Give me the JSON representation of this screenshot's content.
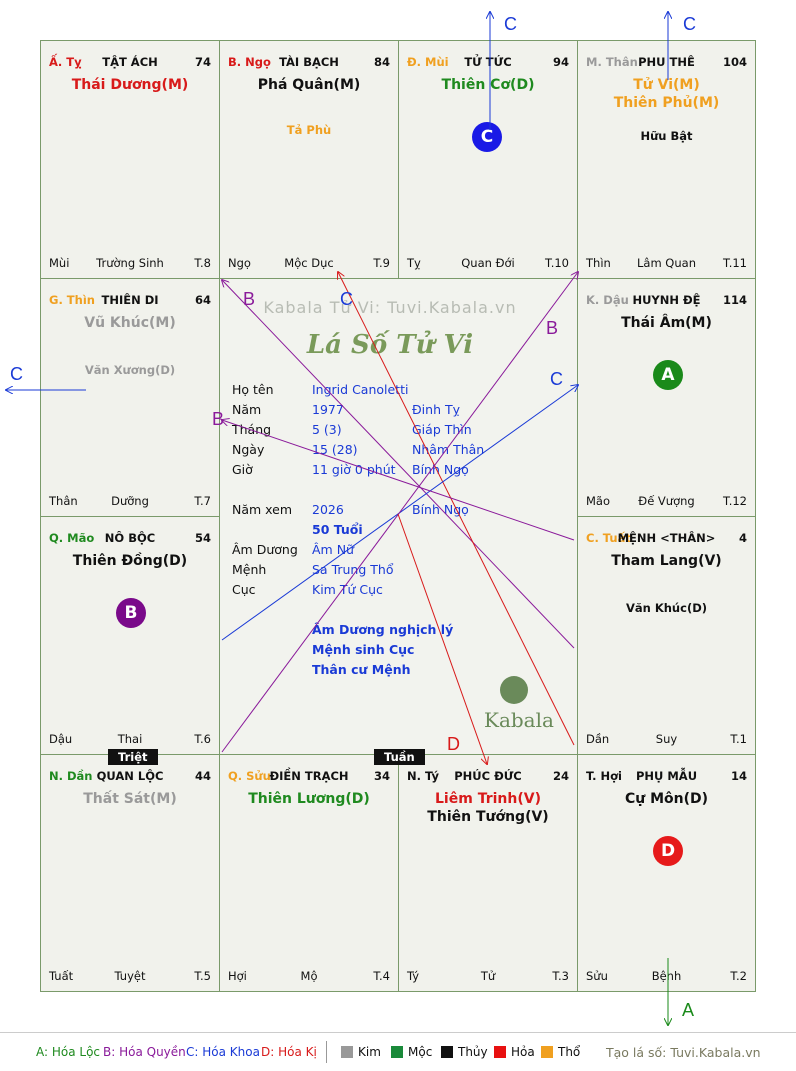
{
  "watermark": "Kabala Tử Vi: Tuvi.Kabala.vn",
  "chart_title": "Lá Số Tử Vi",
  "brand": "Kabala",
  "cells": [
    {
      "branch": "Ấ. Tỵ",
      "branch_color": "#d81a1a",
      "house": "TẬT ÁCH",
      "num": "74",
      "main": [
        {
          "t": "Thái Dương(M)",
          "c": "#d81a1a"
        }
      ],
      "minor": [],
      "bl": "Mùi",
      "bc": "Trường Sinh",
      "br": "T.8"
    },
    {
      "branch": "B. Ngọ",
      "branch_color": "#d81a1a",
      "house": "TÀI BẠCH",
      "num": "84",
      "main": [
        {
          "t": "Phá Quân(M)",
          "c": "#111111"
        }
      ],
      "minor": [
        {
          "t": "Tả Phù",
          "c": "#f0a020"
        }
      ],
      "bl": "Ngọ",
      "bc": "Mộc Dục",
      "br": "T.9"
    },
    {
      "branch": "Đ. Mùi",
      "branch_color": "#f0a020",
      "house": "TỬ TỨC",
      "num": "94",
      "main": [
        {
          "t": "Thiên Cơ(D)",
          "c": "#1f8a1f"
        }
      ],
      "minor": [],
      "bl": "Tỵ",
      "bc": "Quan Đới",
      "br": "T.10"
    },
    {
      "branch": "M. Thân",
      "branch_color": "#9a9a9a",
      "house": "PHU THÊ",
      "num": "104",
      "main": [
        {
          "t": "Tử Vi(M)",
          "c": "#f0a020"
        },
        {
          "t": "Thiên Phủ(M)",
          "c": "#f0a020"
        }
      ],
      "minor": [
        {
          "t": "Hữu Bật",
          "c": "#111111"
        }
      ],
      "bl": "Thìn",
      "bc": "Lâm Quan",
      "br": "T.11"
    },
    {
      "branch": "G. Thìn",
      "branch_color": "#f0a020",
      "house": "THIÊN DI",
      "num": "64",
      "main": [
        {
          "t": "Vũ Khúc(M)",
          "c": "#9a9a9a"
        }
      ],
      "minor": [
        {
          "t": "Văn Xương(D)",
          "c": "#9a9a9a"
        }
      ],
      "bl": "Thân",
      "bc": "Dưỡng",
      "br": "T.7"
    },
    {
      "branch": "K. Dậu",
      "branch_color": "#9a9a9a",
      "house": "HUYNH ĐỆ",
      "num": "114",
      "main": [
        {
          "t": "Thái Âm(M)",
          "c": "#111111"
        }
      ],
      "minor": [],
      "bl": "Mão",
      "bc": "Đế Vượng",
      "br": "T.12"
    },
    {
      "branch": "Q. Mão",
      "branch_color": "#1f8a1f",
      "house": "NÔ BỘC",
      "num": "54",
      "main": [
        {
          "t": "Thiên Đồng(D)",
          "c": "#111111"
        }
      ],
      "minor": [],
      "bl": "Dậu",
      "bc": "Thai",
      "br": "T.6"
    },
    {
      "branch": "C. Tuất",
      "branch_color": "#f0a020",
      "house": "MỆNH <THÂN>",
      "num": "4",
      "main": [
        {
          "t": "Tham Lang(V)",
          "c": "#111111"
        }
      ],
      "minor": [
        {
          "t": "Văn Khúc(D)",
          "c": "#111111"
        }
      ],
      "bl": "Dần",
      "bc": "Suy",
      "br": "T.1"
    },
    {
      "branch": "N. Dần",
      "branch_color": "#1f8a1f",
      "house": "QUAN LỘC",
      "num": "44",
      "main": [
        {
          "t": "Thất Sát(M)",
          "c": "#9a9a9a"
        }
      ],
      "minor": [],
      "bl": "Tuất",
      "bc": "Tuyệt",
      "br": "T.5"
    },
    {
      "branch": "Q. Sửu",
      "branch_color": "#f0a020",
      "house": "ĐIỀN TRẠCH",
      "num": "34",
      "main": [
        {
          "t": "Thiên Lương(D)",
          "c": "#1f8a1f"
        }
      ],
      "minor": [],
      "bl": "Hợi",
      "bc": "Mộ",
      "br": "T.4"
    },
    {
      "branch": "N. Tý",
      "branch_color": "#111111",
      "house": "PHÚC ĐỨC",
      "num": "24",
      "main": [
        {
          "t": "Liêm Trinh(V)",
          "c": "#d81a1a"
        },
        {
          "t": "Thiên Tướng(V)",
          "c": "#111111"
        }
      ],
      "minor": [],
      "bl": "Tý",
      "bc": "Tử",
      "br": "T.3"
    },
    {
      "branch": "T. Hợi",
      "branch_color": "#111111",
      "house": "PHỤ MẪU",
      "num": "14",
      "main": [
        {
          "t": "Cự Môn(D)",
          "c": "#111111"
        }
      ],
      "minor": [],
      "bl": "Sửu",
      "bc": "Bệnh",
      "br": "T.2"
    }
  ],
  "markers": [
    {
      "letter": "C",
      "color": "#1a1ae6",
      "cell": 2
    },
    {
      "letter": "A",
      "color": "#1a8a1a",
      "cell": 5
    },
    {
      "letter": "B",
      "color": "#7a0a8a",
      "cell": 6
    },
    {
      "letter": "D",
      "color": "#e61a1a",
      "cell": 11
    }
  ],
  "info": [
    {
      "label": "Họ tên",
      "value": "Ingrid Canoletti",
      "extra": ""
    },
    {
      "label": "Năm",
      "value": "1977",
      "extra": "Đinh Tỵ"
    },
    {
      "label": "Tháng",
      "value": "5  (3)",
      "extra": "Giáp Thìn"
    },
    {
      "label": "Ngày",
      "value": "15  (28)",
      "extra": "Nhâm Thân"
    },
    {
      "label": "Giờ",
      "value": "11 giờ 0 phút",
      "extra": "Bính Ngọ"
    },
    {
      "label": "Năm xem",
      "value": "2026",
      "extra": "Bính Ngọ"
    },
    {
      "label": "",
      "value": "50 Tuổi",
      "extra": ""
    },
    {
      "label": "Âm Dương",
      "value": "Âm Nữ",
      "extra": ""
    },
    {
      "label": "Mệnh",
      "value": "Sa Trung Thổ",
      "extra": ""
    },
    {
      "label": "Cục",
      "value": "Kim Tứ Cục",
      "extra": ""
    }
  ],
  "notes": [
    "Âm Dương nghịch lý",
    "Mệnh sinh Cục",
    "Thân cư Mệnh"
  ],
  "tags": {
    "triet": "Triệt",
    "tuan": "Tuần"
  },
  "arrow_labels": {
    "c_top1": "C",
    "c_top2": "C",
    "c_left": "C",
    "a_bottom": "A",
    "b1": "B",
    "c1": "C",
    "b2": "B",
    "c2": "C",
    "b3": "B",
    "d1": "D"
  },
  "legend": {
    "loc": "A: Hóa Lộc",
    "quyen": "B: Hóa Quyền",
    "khoa": "C: Hóa Khoa",
    "ki": "D: Hóa Kị",
    "elements": [
      {
        "name": "Kim",
        "color": "#999999"
      },
      {
        "name": "Mộc",
        "color": "#1a8a3a"
      },
      {
        "name": "Thủy",
        "color": "#111111"
      },
      {
        "name": "Hỏa",
        "color": "#e81010"
      },
      {
        "name": "Thổ",
        "color": "#f0a020"
      }
    ],
    "credit": "Tạo lá số: Tuvi.Kabala.vn"
  }
}
